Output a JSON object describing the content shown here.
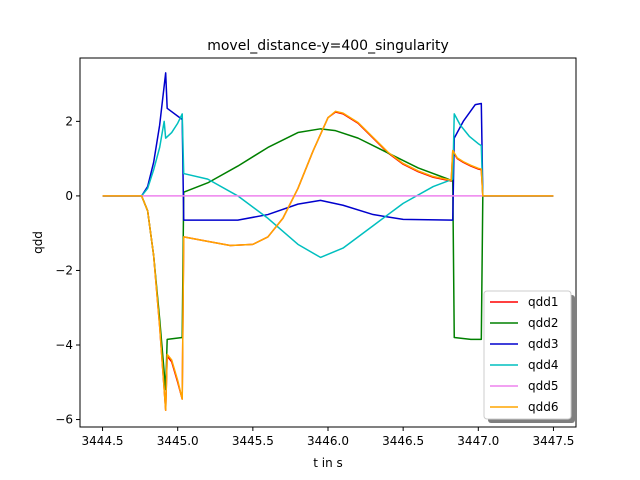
{
  "chart_data": {
    "type": "line",
    "title": "movel_distance-y=400_singularity",
    "xlabel": "t in s",
    "ylabel": "qdd",
    "xlim": [
      3444.35,
      3447.65
    ],
    "ylim": [
      -6.2,
      3.7
    ],
    "xticks": [
      3444.5,
      3445.0,
      3445.5,
      3446.0,
      3446.5,
      3447.0,
      3447.5
    ],
    "xtick_labels": [
      "3444.5",
      "3445.0",
      "3445.5",
      "3446.0",
      "3446.5",
      "3447.0",
      "3447.5"
    ],
    "yticks": [
      -6,
      -4,
      -2,
      0,
      2
    ],
    "ytick_labels": [
      "−6",
      "−4",
      "−2",
      "0",
      "2"
    ],
    "grid": false,
    "legend_position": "lower-right",
    "series": [
      {
        "name": "qdd1",
        "color": "#ff0000",
        "points": [
          [
            3444.5,
            0
          ],
          [
            3444.76,
            0
          ],
          [
            3444.8,
            -0.4
          ],
          [
            3444.84,
            -1.6
          ],
          [
            3444.88,
            -3.5
          ],
          [
            3444.92,
            -5.75
          ],
          [
            3444.93,
            -4.3
          ],
          [
            3444.96,
            -4.45
          ],
          [
            3445.0,
            -5.0
          ],
          [
            3445.03,
            -5.45
          ],
          [
            3445.04,
            -1.1
          ],
          [
            3445.2,
            -1.22
          ],
          [
            3445.35,
            -1.33
          ],
          [
            3445.5,
            -1.3
          ],
          [
            3445.6,
            -1.1
          ],
          [
            3445.7,
            -0.6
          ],
          [
            3445.8,
            0.2
          ],
          [
            3445.9,
            1.2
          ],
          [
            3446.0,
            2.1
          ],
          [
            3446.05,
            2.25
          ],
          [
            3446.1,
            2.2
          ],
          [
            3446.2,
            1.95
          ],
          [
            3446.3,
            1.55
          ],
          [
            3446.4,
            1.15
          ],
          [
            3446.5,
            0.85
          ],
          [
            3446.6,
            0.65
          ],
          [
            3446.7,
            0.5
          ],
          [
            3446.82,
            0.4
          ],
          [
            3446.83,
            1.2
          ],
          [
            3446.86,
            1.0
          ],
          [
            3446.9,
            0.9
          ],
          [
            3446.95,
            0.8
          ],
          [
            3447.0,
            0.72
          ],
          [
            3447.02,
            0.7
          ],
          [
            3447.03,
            0
          ],
          [
            3447.5,
            0
          ]
        ]
      },
      {
        "name": "qdd2",
        "color": "#008000",
        "points": [
          [
            3444.5,
            0
          ],
          [
            3444.76,
            0
          ],
          [
            3444.8,
            -0.4
          ],
          [
            3444.84,
            -1.6
          ],
          [
            3444.88,
            -3.3
          ],
          [
            3444.92,
            -5.2
          ],
          [
            3444.93,
            -3.85
          ],
          [
            3445.03,
            -3.8
          ],
          [
            3445.04,
            0.1
          ],
          [
            3445.2,
            0.35
          ],
          [
            3445.4,
            0.8
          ],
          [
            3445.6,
            1.3
          ],
          [
            3445.8,
            1.7
          ],
          [
            3445.95,
            1.8
          ],
          [
            3446.05,
            1.75
          ],
          [
            3446.2,
            1.55
          ],
          [
            3446.4,
            1.15
          ],
          [
            3446.6,
            0.75
          ],
          [
            3446.8,
            0.45
          ],
          [
            3446.83,
            0.4
          ],
          [
            3446.84,
            -3.8
          ],
          [
            3446.95,
            -3.85
          ],
          [
            3447.02,
            -3.85
          ],
          [
            3447.03,
            0
          ],
          [
            3447.5,
            0
          ]
        ]
      },
      {
        "name": "qdd3",
        "color": "#0000cd",
        "points": [
          [
            3444.5,
            0
          ],
          [
            3444.76,
            0
          ],
          [
            3444.8,
            0.25
          ],
          [
            3444.84,
            0.9
          ],
          [
            3444.88,
            1.9
          ],
          [
            3444.92,
            3.3
          ],
          [
            3444.93,
            2.35
          ],
          [
            3445.03,
            2.05
          ],
          [
            3445.04,
            -0.65
          ],
          [
            3445.4,
            -0.65
          ],
          [
            3445.6,
            -0.5
          ],
          [
            3445.8,
            -0.22
          ],
          [
            3445.95,
            -0.12
          ],
          [
            3446.1,
            -0.25
          ],
          [
            3446.3,
            -0.5
          ],
          [
            3446.5,
            -0.63
          ],
          [
            3446.83,
            -0.65
          ],
          [
            3446.84,
            1.55
          ],
          [
            3446.9,
            2.0
          ],
          [
            3446.98,
            2.45
          ],
          [
            3447.02,
            2.48
          ],
          [
            3447.03,
            0
          ],
          [
            3447.5,
            0
          ]
        ]
      },
      {
        "name": "qdd4",
        "color": "#00bfbf",
        "points": [
          [
            3444.5,
            0
          ],
          [
            3444.76,
            0
          ],
          [
            3444.8,
            0.2
          ],
          [
            3444.84,
            0.7
          ],
          [
            3444.88,
            1.3
          ],
          [
            3444.91,
            2.0
          ],
          [
            3444.92,
            1.55
          ],
          [
            3444.96,
            1.7
          ],
          [
            3445.0,
            1.95
          ],
          [
            3445.03,
            2.2
          ],
          [
            3445.04,
            0.6
          ],
          [
            3445.2,
            0.45
          ],
          [
            3445.4,
            0.0
          ],
          [
            3445.6,
            -0.6
          ],
          [
            3445.8,
            -1.3
          ],
          [
            3445.95,
            -1.65
          ],
          [
            3446.1,
            -1.4
          ],
          [
            3446.3,
            -0.8
          ],
          [
            3446.5,
            -0.2
          ],
          [
            3446.7,
            0.25
          ],
          [
            3446.83,
            0.45
          ],
          [
            3446.84,
            2.2
          ],
          [
            3446.88,
            1.9
          ],
          [
            3446.94,
            1.6
          ],
          [
            3447.0,
            1.4
          ],
          [
            3447.02,
            1.35
          ],
          [
            3447.03,
            0
          ],
          [
            3447.5,
            0
          ]
        ]
      },
      {
        "name": "qdd5",
        "color": "#ee82ee",
        "points": [
          [
            3444.5,
            0
          ],
          [
            3447.5,
            0
          ]
        ]
      },
      {
        "name": "qdd6",
        "color": "#ffa500",
        "points": [
          [
            3444.5,
            0
          ],
          [
            3444.76,
            0
          ],
          [
            3444.8,
            -0.4
          ],
          [
            3444.84,
            -1.6
          ],
          [
            3444.88,
            -3.5
          ],
          [
            3444.92,
            -5.75
          ],
          [
            3444.93,
            -4.25
          ],
          [
            3444.96,
            -4.4
          ],
          [
            3445.0,
            -4.95
          ],
          [
            3445.03,
            -5.45
          ],
          [
            3445.04,
            -1.1
          ],
          [
            3445.2,
            -1.22
          ],
          [
            3445.35,
            -1.33
          ],
          [
            3445.5,
            -1.3
          ],
          [
            3445.6,
            -1.1
          ],
          [
            3445.7,
            -0.6
          ],
          [
            3445.8,
            0.2
          ],
          [
            3445.9,
            1.2
          ],
          [
            3446.0,
            2.1
          ],
          [
            3446.05,
            2.27
          ],
          [
            3446.1,
            2.22
          ],
          [
            3446.2,
            1.97
          ],
          [
            3446.3,
            1.57
          ],
          [
            3446.4,
            1.17
          ],
          [
            3446.5,
            0.87
          ],
          [
            3446.6,
            0.67
          ],
          [
            3446.7,
            0.52
          ],
          [
            3446.82,
            0.42
          ],
          [
            3446.83,
            1.22
          ],
          [
            3446.86,
            1.02
          ],
          [
            3446.9,
            0.92
          ],
          [
            3446.95,
            0.82
          ],
          [
            3447.0,
            0.74
          ],
          [
            3447.02,
            0.72
          ],
          [
            3447.03,
            0
          ],
          [
            3447.5,
            0
          ]
        ]
      }
    ]
  }
}
